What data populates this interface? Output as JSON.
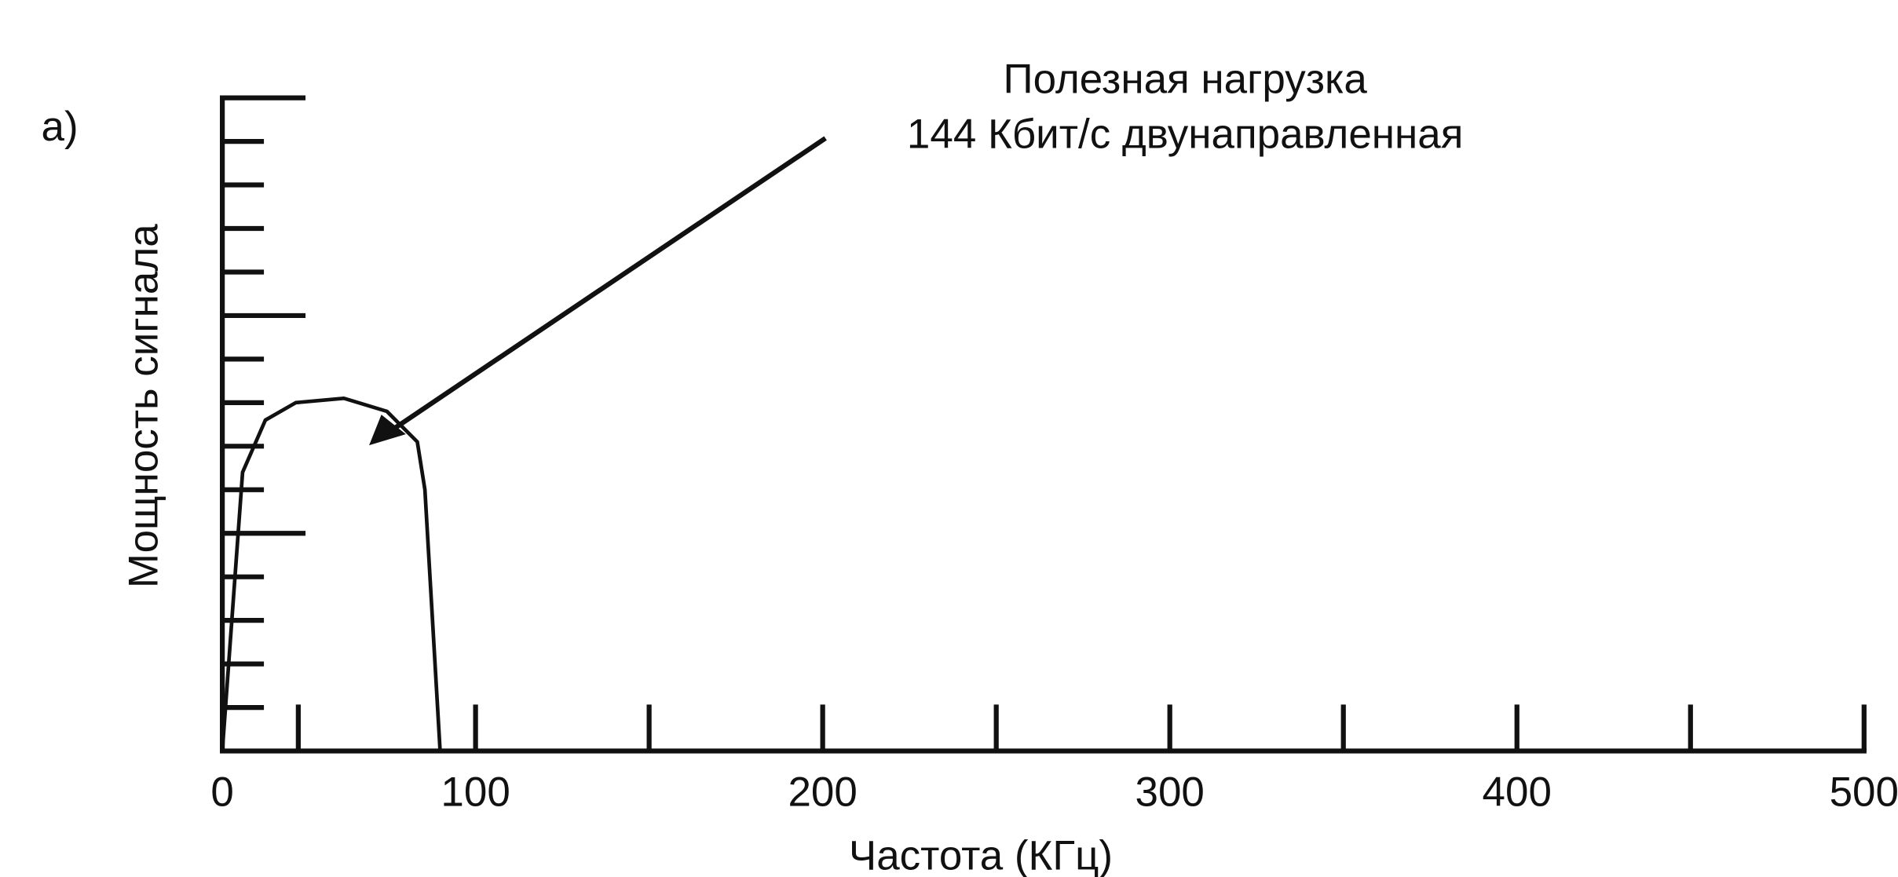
{
  "chart_data": {
    "type": "line",
    "panel_label": "а)",
    "annotation": [
      "Полезная нагрузка",
      "144 Кбит/с двунаправленная"
    ],
    "ylabel": "Мощность сигнала",
    "xlabel": "Частота (КГц)",
    "xlim": [
      0,
      500
    ],
    "xticks": [
      0,
      100,
      200,
      300,
      400,
      500
    ],
    "xminorticks": [
      30,
      150,
      250,
      350,
      450
    ],
    "ylim": [
      0,
      15
    ],
    "yticks": [
      1,
      2,
      3,
      4,
      5,
      6,
      7,
      8,
      9,
      10,
      11,
      12,
      13,
      14,
      15
    ],
    "series": [
      {
        "color": "#111111",
        "x": [
          0,
          8,
          17,
          29,
          48,
          65,
          77,
          80,
          86
        ],
        "values": [
          0,
          6.4,
          7.6,
          8.0,
          8.1,
          7.8,
          7.1,
          6.0,
          0
        ]
      }
    ]
  }
}
